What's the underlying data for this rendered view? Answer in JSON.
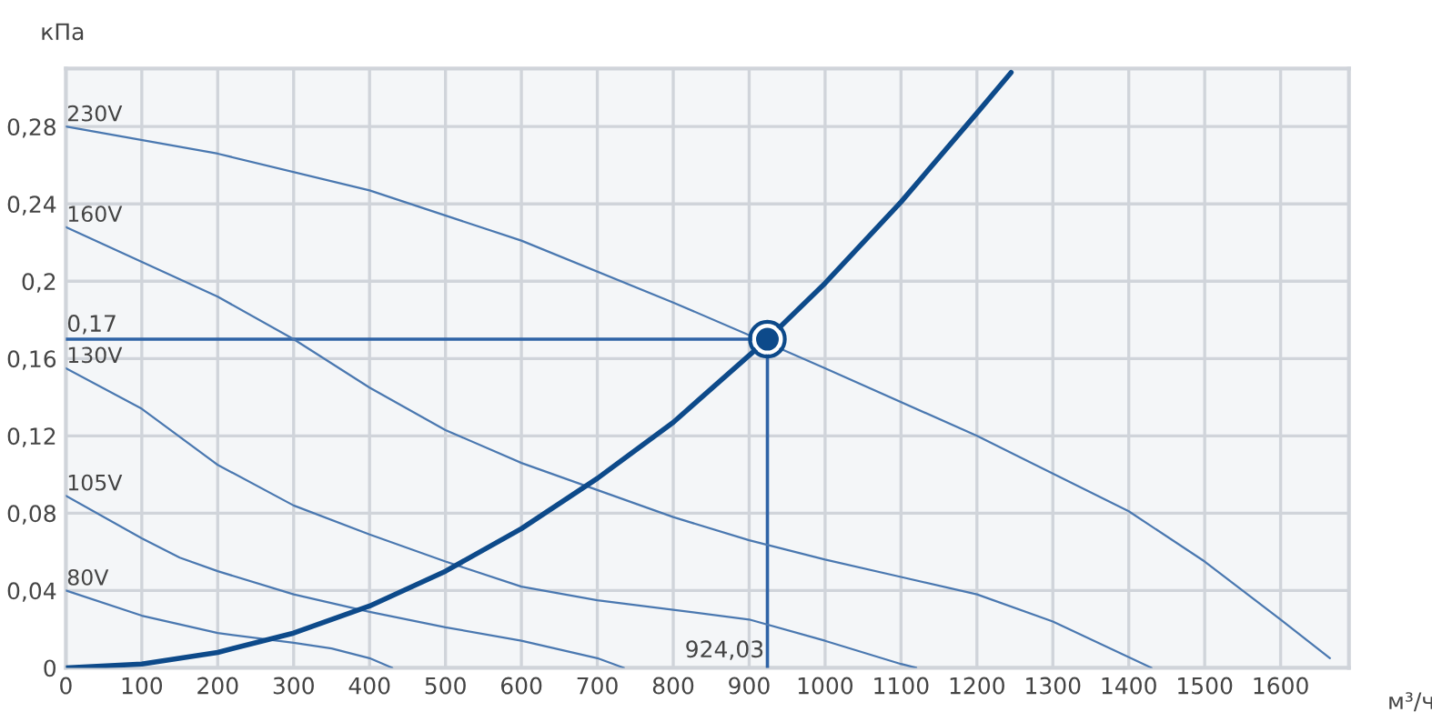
{
  "chart_data": {
    "type": "line",
    "xlabel": "м³/ч",
    "ylabel": "кПа",
    "xlim": [
      0,
      1690
    ],
    "ylim": [
      0,
      0.31
    ],
    "xticks": [
      0,
      100,
      200,
      300,
      400,
      500,
      600,
      700,
      800,
      900,
      1000,
      1100,
      1200,
      1300,
      1400,
      1500,
      1600
    ],
    "yticks": [
      0,
      {
        "value": 0.04,
        "label": "0,04"
      },
      {
        "value": 0.08,
        "label": "0,08"
      },
      {
        "value": 0.12,
        "label": "0,12"
      },
      {
        "value": 0.16,
        "label": "0,16"
      },
      {
        "value": 0.2,
        "label": "0,2"
      },
      {
        "value": 0.24,
        "label": "0,24"
      },
      {
        "value": 0.28,
        "label": "0,28"
      }
    ],
    "grid": true,
    "legend": false,
    "marker": "none",
    "line_style": "solid",
    "series": [
      {
        "name": "230V",
        "color": "#4a78b0",
        "x": [
          0,
          200,
          400,
          600,
          800,
          924.03,
          1000,
          1200,
          1400,
          1500,
          1600,
          1665
        ],
        "values": [
          0.28,
          0.266,
          0.247,
          0.221,
          0.189,
          0.168,
          0.155,
          0.12,
          0.081,
          0.055,
          0.025,
          0.005
        ]
      },
      {
        "name": "160V",
        "color": "#4a78b0",
        "x": [
          0,
          200,
          300,
          400,
          500,
          600,
          700,
          800,
          900,
          1000,
          1100,
          1200,
          1300,
          1430
        ],
        "values": [
          0.228,
          0.192,
          0.17,
          0.145,
          0.123,
          0.106,
          0.092,
          0.078,
          0.066,
          0.056,
          0.047,
          0.038,
          0.024,
          0.0
        ]
      },
      {
        "name": "130V",
        "color": "#4a78b0",
        "x": [
          0,
          100,
          200,
          300,
          400,
          500,
          600,
          700,
          800,
          900,
          1000,
          1100,
          1120
        ],
        "values": [
          0.155,
          0.134,
          0.105,
          0.084,
          0.069,
          0.055,
          0.042,
          0.035,
          0.03,
          0.025,
          0.014,
          0.002,
          0.0
        ]
      },
      {
        "name": "105V",
        "color": "#4a78b0",
        "x": [
          0,
          100,
          150,
          200,
          300,
          400,
          500,
          600,
          700,
          735
        ],
        "values": [
          0.089,
          0.067,
          0.057,
          0.05,
          0.038,
          0.029,
          0.021,
          0.014,
          0.005,
          0.0
        ]
      },
      {
        "name": "80V",
        "color": "#4a78b0",
        "x": [
          0,
          100,
          200,
          300,
          350,
          400,
          430
        ],
        "values": [
          0.04,
          0.027,
          0.018,
          0.013,
          0.01,
          0.005,
          0.0
        ]
      },
      {
        "color": "#0d4a8a",
        "x": [
          0,
          100,
          200,
          300,
          400,
          500,
          600,
          700,
          800,
          924.03,
          1000,
          1100,
          1200,
          1245
        ],
        "values": [
          0,
          0.002,
          0.008,
          0.018,
          0.032,
          0.05,
          0.072,
          0.098,
          0.127,
          0.17,
          0.199,
          0.241,
          0.287,
          0.308
        ]
      },
      {
        "type": "scatter",
        "marker": "circle",
        "color": "#0d4a8a",
        "x": [
          924.03
        ],
        "values": [
          0.17
        ]
      }
    ],
    "ref_lines": [
      {
        "axis": "y",
        "value": 0.17,
        "label": "0,17",
        "color": "#2f63a6"
      },
      {
        "axis": "x",
        "value": 924.03,
        "label": "924,03",
        "color": "#2f63a6"
      }
    ]
  }
}
